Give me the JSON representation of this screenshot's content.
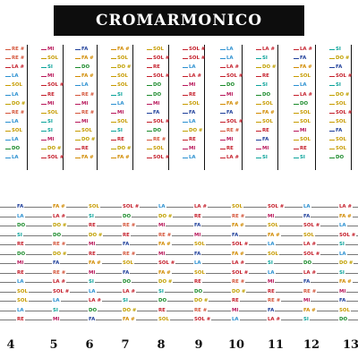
{
  "title": "CROMARMONICO",
  "colors": {
    "DO": "#1a8a2a",
    "DO#": "#c0a000",
    "RE": "#c41e2a",
    "RE#": "#d4553a",
    "MI": "#b8175a",
    "FA": "#1f3f9a",
    "FA#": "#d18a00",
    "SOL": "#c79b00",
    "SOL#": "#c41e2a",
    "LA": "#2a8fd0",
    "LA#": "#c41e2a",
    "SI": "#0aa39a"
  },
  "upper_columns": [
    [
      "RE #",
      "RE #",
      "LA #",
      "LA",
      "SOL",
      "LA",
      "DO #",
      "RE #",
      "LA",
      "SOL",
      "LA",
      "DO",
      "LA"
    ],
    [
      "MI",
      "SOL",
      "SI",
      "MI",
      "SOL #",
      "RE",
      "MI",
      "SOL",
      "SI",
      "SI",
      "MI",
      "DO #",
      "SOL #"
    ],
    [
      "FA",
      "FA #",
      "DO",
      "FA #",
      "LA",
      "RE #",
      "MI",
      "RE #",
      "MI",
      "SOL",
      "DO #",
      "RE",
      "FA #"
    ],
    [
      "FA #",
      "SOL",
      "DO #",
      "SOL",
      "SOL",
      "SI",
      "LA",
      "MI",
      "SOL",
      "SI",
      "RE",
      "DO #",
      "FA #"
    ],
    [
      "SOL",
      "SOL #",
      "RE",
      "SOL #",
      "DO",
      "DO",
      "MI",
      "FA",
      "SOL #",
      "DO",
      "RE #",
      "SOL",
      "SOL #"
    ],
    [
      "SOL #",
      "SOL #",
      "LA",
      "LA #",
      "MI",
      "RE",
      "SOL",
      "FA",
      "LA",
      "DO #",
      "RE",
      "MI",
      "LA"
    ],
    [
      "LA",
      "LA",
      "LA #",
      "SOL #",
      "DO",
      "MI",
      "FA #",
      "FA",
      "SOL #",
      "RE #",
      "MI",
      "RE",
      "LA #"
    ],
    [
      "LA #",
      "SI",
      "DO #",
      "RE",
      "SI",
      "DO",
      "SOL",
      "FA #",
      "SOL",
      "RE",
      "FA",
      "MI",
      "SI"
    ],
    [
      "LA #",
      "FA",
      "FA #",
      "SOL",
      "LA",
      "LA #",
      "DO",
      "SOL",
      "SOL",
      "MI",
      "SOL",
      "RE",
      "SI"
    ],
    [
      "SI",
      "DO #",
      "FA",
      "SOL #",
      "SI",
      "DO #",
      "SOL",
      "SOL #",
      "SOL",
      "FA",
      "SOL",
      "SOL",
      "DO"
    ]
  ],
  "lower_labels": [
    [
      "FA",
      "FA #",
      "SOL",
      "SOL #",
      "LA",
      "LA #",
      "SOL",
      "SOL #",
      "LA",
      "LA #"
    ],
    [
      "LA",
      "LA #",
      "SI",
      "DO",
      "DO #",
      "RE",
      "RE #",
      "MI",
      "FA",
      "FA #"
    ],
    [
      "DO",
      "DO #",
      "RE",
      "RE #",
      "MI",
      "FA",
      "FA #",
      "SOL",
      "SOL #",
      "LA"
    ],
    [
      "SI",
      "DO",
      "DO #",
      "RE",
      "RE #",
      "MI",
      "FA",
      "FA #",
      "SOL",
      "SOL #"
    ],
    [
      "RE",
      "RE #",
      "MI",
      "FA",
      "FA #",
      "SOL",
      "SOL #",
      "LA",
      "LA #",
      "SI"
    ],
    [
      "DO",
      "DO #",
      "RE",
      "RE #",
      "MI",
      "FA",
      "FA #",
      "SOL",
      "SOL #",
      "LA"
    ],
    [
      "MI",
      "FA",
      "FA #",
      "SOL",
      "SOL #",
      "LA",
      "LA #",
      "SI",
      "DO",
      "DO #"
    ],
    [
      "RE",
      "RE #",
      "MI",
      "FA",
      "FA #",
      "SOL",
      "SOL #",
      "LA",
      "LA #",
      "SI"
    ],
    [
      "LA",
      "LA #",
      "SI",
      "DO",
      "DO #",
      "RE",
      "RE #",
      "MI",
      "FA",
      "FA #"
    ],
    [
      "SOL",
      "SOL #",
      "LA",
      "LA #",
      "SI",
      "DO",
      "DO #",
      "RE",
      "RE #",
      "MI"
    ],
    [
      "SOL",
      "LA",
      "LA #",
      "SI",
      "DO",
      "DO #",
      "RE",
      "RE #",
      "MI",
      "FA"
    ],
    [
      "LA",
      "SI",
      "DO",
      "DO #",
      "RE",
      "RE #",
      "MI",
      "FA",
      "FA #",
      "SOL"
    ],
    [
      "RE",
      "MI",
      "FA",
      "FA #",
      "SOL",
      "SOL #",
      "LA",
      "LA #",
      "SI",
      "DO"
    ]
  ],
  "fret_numbers": [
    "4",
    "5",
    "6",
    "7",
    "8",
    "9",
    "10",
    "11",
    "12",
    "13"
  ]
}
